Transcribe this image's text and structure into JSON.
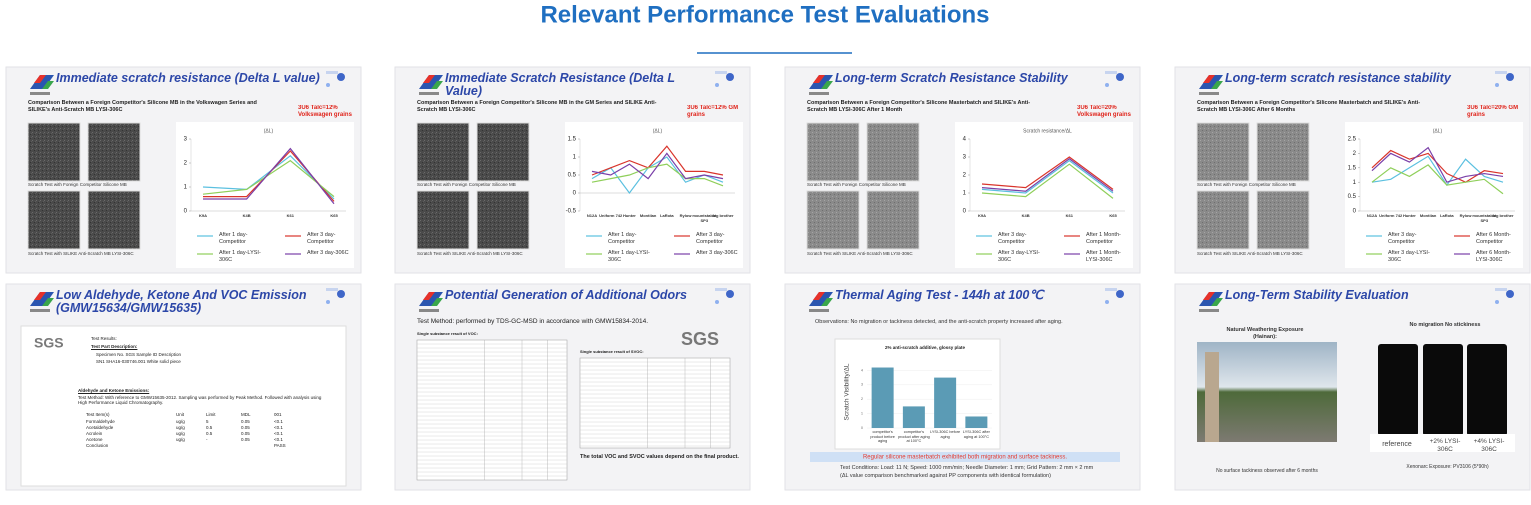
{
  "header": {
    "title": "Relevant Performance Test Evaluations"
  },
  "slides": [
    {
      "kind": "lines",
      "title": "Immediate scratch resistance (Delta L value)",
      "subtitle": "Comparison Between a Foreign Competitor's Silicone MB in the Volkswagen Series and SILIKE's Anti-Scratch MB LYSI-306C",
      "note": "3U6 Talc=12% Volkswagen grains",
      "captions": [
        "Scratch Test with Foreign Competitor Silicone MB",
        "Scratch Test with SILIKE Anti-Scratch MB LYSI-306C"
      ],
      "chart": {
        "type": "line",
        "title": "(ΔL)",
        "categories": [
          "K9A",
          "K4B",
          "K61",
          "K65"
        ],
        "ylim": [
          0,
          3
        ],
        "yticks": [
          0,
          1,
          2,
          3
        ],
        "series": [
          {
            "name": "After 1 day-Competitor",
            "color": "#5bc0e0",
            "values": [
              1.0,
              0.9,
              2.3,
              0.5
            ]
          },
          {
            "name": "After 3 day-Competitor",
            "color": "#d9342b",
            "values": [
              0.6,
              0.6,
              2.5,
              0.4
            ]
          },
          {
            "name": "After 1 day-LYSI-306C",
            "color": "#8fcf5a",
            "values": [
              0.7,
              0.9,
              2.1,
              0.6
            ]
          },
          {
            "name": "After 3 day-306C",
            "color": "#7a3fa8",
            "values": [
              0.5,
              0.5,
              2.6,
              0.3
            ]
          }
        ]
      }
    },
    {
      "kind": "lines",
      "title": "Immediate Scratch Resistance (Delta L Value)",
      "subtitle": "Comparison Between a Foreign Competitor's Silicone MB in the GM Series and SILIKE Anti-Scratch MB LYSI-306C",
      "note": "3U6 Talc=12% GM grains",
      "captions": [
        "Scratch Test with Foreign Competitor Silicone MB",
        "Scratch Test with SILIKE Anti-Scratch MB LYSI-306C"
      ],
      "chart": {
        "type": "line",
        "title": "(ΔL)",
        "categories": [
          "N12A",
          "Uniform 742",
          "Hunter",
          "Montilan",
          "LaRota",
          "Rylow",
          "mountstable SP3",
          "big brother"
        ],
        "ylim": [
          -0.5,
          1.5
        ],
        "yticks": [
          -0.5,
          0,
          0.5,
          1,
          1.5
        ],
        "series": [
          {
            "name": "After 1 day-Competitor",
            "color": "#5bc0e0",
            "values": [
              0.4,
              0.7,
              0.0,
              0.7,
              1.0,
              0.3,
              0.5,
              0.3
            ]
          },
          {
            "name": "After 3 day-Competitor",
            "color": "#d9342b",
            "values": [
              0.5,
              0.7,
              0.9,
              0.7,
              1.3,
              0.6,
              0.6,
              0.5
            ]
          },
          {
            "name": "After 1 day-LYSI-306C",
            "color": "#8fcf5a",
            "values": [
              0.3,
              0.4,
              0.5,
              0.7,
              0.8,
              0.4,
              0.4,
              0.2
            ]
          },
          {
            "name": "After 3 day-306C",
            "color": "#7a3fa8",
            "values": [
              0.6,
              0.5,
              0.8,
              0.4,
              1.1,
              0.4,
              0.5,
              0.4
            ]
          }
        ]
      }
    },
    {
      "kind": "lines",
      "title": "Long-term Scratch Resistance Stability",
      "subtitle": "Comparison Between a Foreign Competitor's Silicone Masterbatch and SILIKE's Anti-Scratch MB LYSI-306C After 1 Month",
      "note": "3U6 Talc=20% Volkswagen grains",
      "captions": [
        "Scratch Test with Foreign Competitor Silicone MB",
        "Scratch Test with SILIKE Anti-Scratch MB LYSI-306C"
      ],
      "chart": {
        "type": "line",
        "title": "Scratch resistance/ΔL",
        "categories": [
          "K9A",
          "K4B",
          "K61",
          "K65"
        ],
        "ylim": [
          0,
          4
        ],
        "yticks": [
          0,
          1,
          2,
          3,
          4
        ],
        "series": [
          {
            "name": "After 3 day-Competitor",
            "color": "#5bc0e0",
            "values": [
              1.2,
              1.0,
              2.8,
              1.0
            ]
          },
          {
            "name": "After 1 Month-Competitor",
            "color": "#d9342b",
            "values": [
              1.5,
              1.3,
              3.0,
              1.2
            ]
          },
          {
            "name": "After 3 day-LYSI-306C",
            "color": "#8fcf5a",
            "values": [
              1.0,
              0.8,
              2.6,
              0.7
            ]
          },
          {
            "name": "After 1 Month-LYSI-306C",
            "color": "#7a3fa8",
            "values": [
              1.3,
              1.1,
              2.9,
              1.1
            ]
          }
        ]
      }
    },
    {
      "kind": "lines",
      "title": "Long-term scratch resistance stability",
      "subtitle": "Comparison Between a Foreign Competitor's Silicone Masterbatch and SILIKE's Anti-Scratch MB LYSI-306C After 6 Months",
      "note": "3U6 Talc=20% GM grains",
      "captions": [
        "Scratch Test with Foreign Competitor Silicone MB",
        "Scratch Test with SILIKE Anti-Scratch MB LYSI-306C"
      ],
      "chart": {
        "type": "line",
        "title": "(ΔL)",
        "categories": [
          "N12A",
          "Uniform 742",
          "Hunter",
          "Montilan",
          "LaRota",
          "Rylow",
          "mountstable SP3",
          "big brother"
        ],
        "ylim": [
          0,
          2.5
        ],
        "yticks": [
          0,
          0.5,
          1,
          1.5,
          2,
          2.5
        ],
        "series": [
          {
            "name": "After 3 day-Competitor",
            "color": "#5bc0e0",
            "values": [
              1.0,
              1.1,
              1.5,
              1.9,
              0.9,
              1.8,
              1.2,
              1.0
            ]
          },
          {
            "name": "After 6 Month-Competitor",
            "color": "#d9342b",
            "values": [
              1.5,
              2.1,
              1.8,
              2.0,
              1.3,
              1.0,
              1.4,
              1.3
            ]
          },
          {
            "name": "After 3 day-LYSI-306C",
            "color": "#8fcf5a",
            "values": [
              1.0,
              1.5,
              1.2,
              1.6,
              0.9,
              1.0,
              1.1,
              0.6
            ]
          },
          {
            "name": "After 6 Month-LYSI-306C",
            "color": "#7a3fa8",
            "values": [
              1.4,
              2.0,
              1.7,
              2.2,
              1.0,
              1.2,
              1.3,
              1.2
            ]
          }
        ]
      }
    },
    {
      "kind": "report",
      "title": "Low Aldehyde, Ketone And VOC Emission (GMW15634/GMW15635)",
      "logo": "SGS",
      "lines": [
        "Test Results:",
        "Test Part Description:",
        "Specimen No.   SGS Sample ID   Description",
        "SN1   SHA16-030746.001   White solid piece",
        "Aldehyde and Ketone Emissions:",
        "Test Method: With reference to GMW15635-2012. Sampling was performed by Peak Method. Followed with analysis using High Performance Liquid Chromatography."
      ],
      "table": {
        "header": [
          "Test Item(s)",
          "Unit",
          "Limit",
          "MDL",
          "001"
        ],
        "rows": [
          [
            "Formaldehyde",
            "ug/g",
            "5",
            "0.05",
            "<0.1"
          ],
          [
            "Acetaldehyde",
            "ug/g",
            "0.5",
            "0.05",
            "<0.1"
          ],
          [
            "Acrolein",
            "ug/g",
            "0.5",
            "0.05",
            "<0.1"
          ],
          [
            "Acetone",
            "ug/g",
            "-",
            "0.05",
            "<0.1"
          ],
          [
            "Conclusion",
            "",
            "",
            "",
            "PASS"
          ]
        ]
      }
    },
    {
      "kind": "odor",
      "title": "Potential Generation of Additional Odors",
      "method": "Test Method:  performed by TDS-GC-MSD in accordance with GMW15834-2014.",
      "logo": "SGS",
      "tables": [
        "Single substance result of VOC:",
        "Single substance result of SVOC:"
      ],
      "footer": "The total VOC and SVOC values depend on the final product."
    },
    {
      "kind": "bars",
      "title": "Thermal Aging Test - 144h at 100℃",
      "observation": "Observations: No migration or tackiness detected, and the anti-scratch property increased after aging.",
      "chart": {
        "type": "bar",
        "title": "2% anti-scratch additive, glossy plate",
        "ylabel": "Scratch Visibility/ΔL",
        "categories": [
          "competitor's product before aging",
          "competitor's product after aging at 100°C",
          "LYSI-306C before aging",
          "LYSI-306C after aging at 100°C"
        ],
        "values": [
          4.2,
          1.5,
          3.5,
          0.8
        ],
        "color": "#5b9bb5",
        "ylim": [
          0,
          5
        ],
        "yticks": [
          0,
          1,
          2,
          3,
          4
        ]
      },
      "banner": "Regular silicone masterbatch exhibited both migration and surface tackiness.",
      "conditions": [
        "Test Conditions:  Load: 11 N;  Speed: 1000 mm/min;  Needle Diameter: 1 mm;  Grid Pattern: 2 mm × 2 mm",
        "(ΔL value comparison benchmarked against PP components with identical formulation)"
      ]
    },
    {
      "kind": "photos",
      "title": "Long-Term Stability Evaluation",
      "left_heading": "Natural Weathering Exposure (Hainan):",
      "right_heading": "No migration No stickiness",
      "plates": [
        "reference",
        "+2% LYSI-306C",
        "+4% LYSI-306C"
      ],
      "left_caption": "No surface tackiness observed after 6 months",
      "right_caption": "Xenonarc Exposure: PV3106 (5*90h)"
    }
  ]
}
